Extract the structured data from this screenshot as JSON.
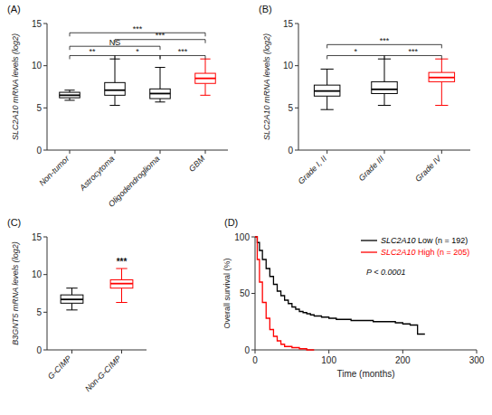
{
  "chart_data": [
    {
      "type": "box",
      "title": "(A)",
      "ylabel": "SLC2A10 mRNA levels (log2)",
      "categories": [
        "Non-tumor",
        "Astrocytoma",
        "Oligodendroglioma",
        "GBM"
      ],
      "colors": [
        "black",
        "black",
        "black",
        "red"
      ],
      "boxes": [
        {
          "med": 6.5,
          "q1": 6.2,
          "q3": 6.85,
          "whislo": 5.9,
          "whishi": 7.1
        },
        {
          "med": 7.1,
          "q1": 6.5,
          "q3": 8.0,
          "whislo": 5.3,
          "whishi": 10.8
        },
        {
          "med": 6.7,
          "q1": 6.1,
          "q3": 7.25,
          "whislo": 5.7,
          "whishi": 9.8
        },
        {
          "med": 8.5,
          "q1": 7.9,
          "q3": 9.1,
          "whislo": 6.5,
          "whishi": 10.8
        }
      ],
      "ylim": [
        0,
        15
      ],
      "yticks": [
        0,
        5,
        10,
        15
      ],
      "annotations": [
        {
          "from": "Non-tumor",
          "to": "Astrocytoma",
          "y": 11.2,
          "label": "**"
        },
        {
          "from": "Astrocytoma",
          "to": "Oligodendroglioma",
          "y": 11.2,
          "label": "*"
        },
        {
          "from": "Oligodendroglioma",
          "to": "GBM",
          "y": 11.2,
          "label": "***"
        },
        {
          "from": "Non-tumor",
          "to": "Oligodendroglioma",
          "y": 12.3,
          "label": "NS"
        },
        {
          "from": "Astrocytoma",
          "to": "GBM",
          "y": 13.1,
          "label": "***"
        },
        {
          "from": "Non-tumor",
          "to": "GBM",
          "y": 13.9,
          "label": "***"
        }
      ]
    },
    {
      "type": "box",
      "title": "(B)",
      "ylabel": "SLC2A10 mRNA levels (log2)",
      "categories": [
        "Grade I, II",
        "Grade III",
        "Grade IV"
      ],
      "colors": [
        "black",
        "black",
        "red"
      ],
      "boxes": [
        {
          "med": 7.0,
          "q1": 6.4,
          "q3": 7.7,
          "whislo": 4.8,
          "whishi": 9.6
        },
        {
          "med": 7.2,
          "q1": 6.7,
          "q3": 8.1,
          "whislo": 5.3,
          "whishi": 10.8
        },
        {
          "med": 8.6,
          "q1": 8.1,
          "q3": 9.2,
          "whislo": 5.3,
          "whishi": 10.8
        }
      ],
      "ylim": [
        0,
        15
      ],
      "yticks": [
        0,
        5,
        10,
        15
      ],
      "annotations": [
        {
          "from": "Grade I, II",
          "to": "Grade III",
          "y": 11.2,
          "label": "*"
        },
        {
          "from": "Grade III",
          "to": "Grade IV",
          "y": 11.2,
          "label": "***"
        },
        {
          "from": "Grade I, II",
          "to": "Grade IV",
          "y": 12.5,
          "label": "***"
        }
      ]
    },
    {
      "type": "box",
      "title": "(C)",
      "ylabel": "B3GNT5 mRNA levels (log2)",
      "categories": [
        "G-CIMP",
        "Non-G-CIMP"
      ],
      "colors": [
        "black",
        "red"
      ],
      "boxes": [
        {
          "med": 6.7,
          "q1": 6.2,
          "q3": 7.3,
          "whislo": 5.3,
          "whishi": 8.2
        },
        {
          "med": 8.8,
          "q1": 8.2,
          "q3": 9.3,
          "whislo": 6.3,
          "whishi": 10.8
        }
      ],
      "ylim": [
        0,
        15
      ],
      "yticks": [
        0,
        5,
        10,
        15
      ],
      "annotations": [
        {
          "at": "Non-G-CIMP",
          "y": 11.0,
          "label": "***"
        }
      ]
    },
    {
      "type": "step",
      "title": "(D)",
      "xlabel": "Time (months)",
      "ylabel": "Overall survival (%)",
      "xlim": [
        0,
        300
      ],
      "ylim": [
        0,
        100
      ],
      "xticks": [
        0,
        100,
        200,
        300
      ],
      "yticks": [
        0,
        50,
        100
      ],
      "legend": "upper right",
      "annotations": [
        "P < 0.0001"
      ],
      "series": [
        {
          "name": "SLC2A10 Low (n = 192)",
          "color": "black",
          "x": [
            0,
            3,
            6,
            10,
            15,
            20,
            25,
            30,
            35,
            40,
            45,
            50,
            55,
            60,
            65,
            70,
            75,
            80,
            85,
            90,
            95,
            100,
            110,
            120,
            130,
            140,
            150,
            160,
            170,
            180,
            190,
            200,
            210,
            220,
            230
          ],
          "values": [
            100,
            95,
            88,
            80,
            72,
            65,
            58,
            52,
            48,
            44,
            41,
            38,
            36,
            34,
            33,
            32,
            31,
            30,
            30,
            29,
            29,
            28,
            27,
            27,
            26,
            26,
            26,
            25,
            25,
            25,
            24,
            23,
            22,
            14,
            14
          ]
        },
        {
          "name": "SLC2A10 High (n = 205)",
          "color": "red",
          "x": [
            0,
            3,
            6,
            10,
            15,
            20,
            25,
            30,
            35,
            40,
            50,
            60,
            70,
            80
          ],
          "values": [
            100,
            80,
            60,
            42,
            28,
            18,
            12,
            8,
            5,
            3,
            2,
            1,
            0,
            0
          ]
        }
      ]
    }
  ]
}
